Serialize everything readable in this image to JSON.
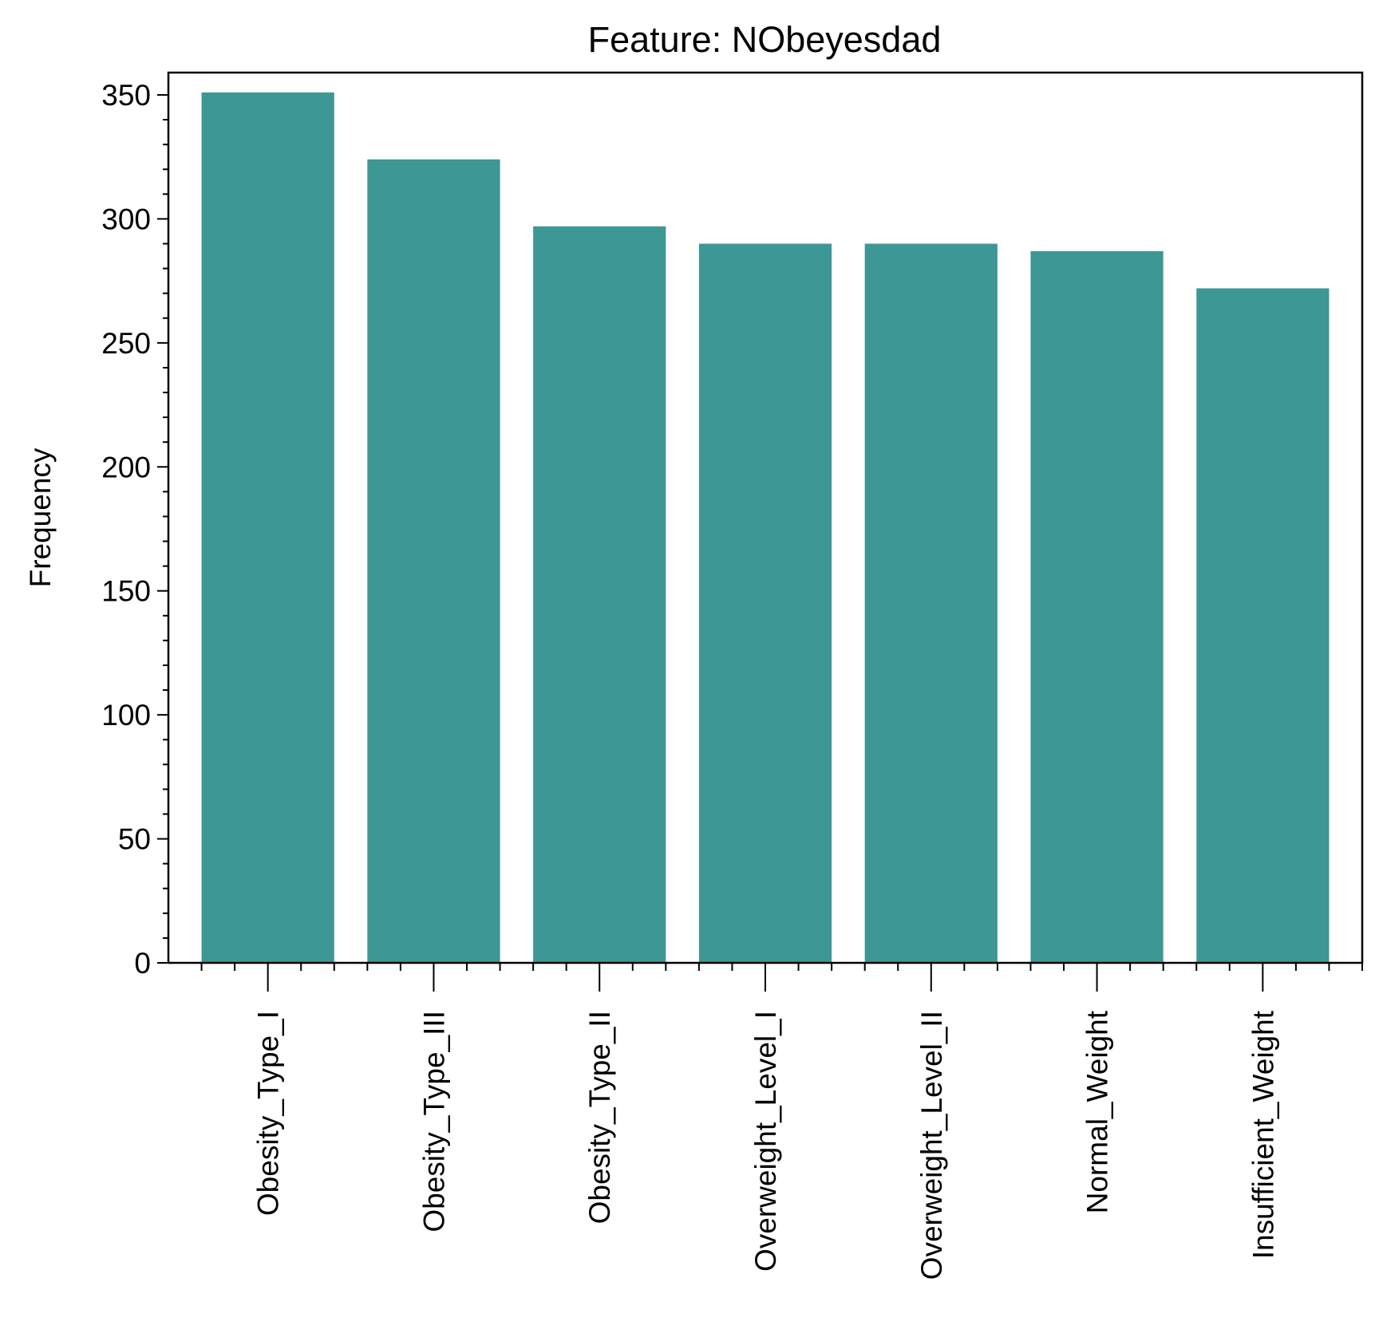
{
  "chart_data": {
    "type": "bar",
    "title": "Feature: NObeyesdad",
    "xlabel": "",
    "ylabel": "Frequency",
    "categories": [
      "Obesity_Type_I",
      "Obesity_Type_III",
      "Obesity_Type_II",
      "Overweight_Level_I",
      "Overweight_Level_II",
      "Normal_Weight",
      "Insufficient_Weight"
    ],
    "values": [
      351,
      324,
      297,
      290,
      290,
      287,
      272
    ],
    "ylim": [
      0,
      359
    ],
    "yticks": [
      0,
      50,
      100,
      150,
      200,
      250,
      300,
      350
    ],
    "ytick_labels": [
      "0",
      "50",
      "100",
      "150",
      "200",
      "250",
      "300",
      "350"
    ],
    "grid": false,
    "bar_color": "#3d9795",
    "minor_ticks": true
  }
}
